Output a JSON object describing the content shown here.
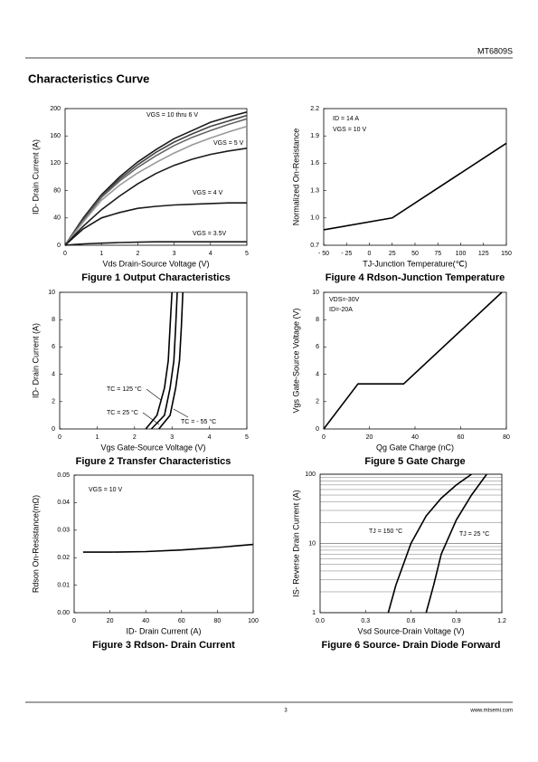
{
  "header": {
    "part": "MT6809S",
    "title": "Characteristics Curve"
  },
  "footer": {
    "page": "3",
    "site": "www.mtsemi.com"
  },
  "chart_data": [
    {
      "type": "line",
      "title": "Figure 1 Output Characteristics",
      "x_label": "Vds Drain-Source Voltage (V)",
      "y_label": "ID- Drain Current (A)",
      "xlim": [
        0,
        5
      ],
      "ylim": [
        0,
        200
      ],
      "xticks": [
        0,
        1,
        2,
        3,
        4,
        5
      ],
      "yticks": [
        0,
        40,
        80,
        120,
        160,
        200
      ],
      "grid": false,
      "x": [
        0,
        0.25,
        0.5,
        1,
        1.5,
        2,
        2.5,
        3,
        3.5,
        4,
        4.5,
        5
      ],
      "series": [
        {
          "color": "#1a1a1a",
          "values": [
            0,
            20,
            40,
            74,
            100,
            122,
            140,
            156,
            168,
            180,
            188,
            195
          ]
        },
        {
          "color": "#444444",
          "values": [
            0,
            19,
            38,
            72,
            97,
            118,
            136,
            151,
            163,
            174,
            182,
            190
          ]
        },
        {
          "color": "#666666",
          "values": [
            0,
            18,
            36,
            70,
            94,
            114,
            131,
            146,
            158,
            168,
            177,
            185
          ]
        },
        {
          "color": "#999999",
          "values": [
            0,
            17,
            34,
            66,
            88,
            106,
            121,
            135,
            147,
            157,
            166,
            174
          ]
        },
        {
          "color": "#1a1a1a",
          "values": [
            0,
            14,
            28,
            52,
            72,
            90,
            105,
            117,
            126,
            133,
            138,
            142
          ]
        },
        {
          "color": "#1a1a1a",
          "values": [
            0,
            12,
            24,
            40,
            48,
            54,
            57,
            59,
            60,
            61,
            62,
            62
          ]
        },
        {
          "color": "#1a1a1a",
          "values": [
            0,
            1,
            2,
            3,
            4,
            4.5,
            5,
            5,
            5,
            5,
            5,
            5
          ]
        }
      ],
      "annotations": [
        "VGS = 10 thru 6 V",
        "VGS = 5 V",
        "VGS = 4 V",
        "VGS = 3.5V"
      ]
    },
    {
      "type": "line",
      "title": "Figure 4 Rdson-Junction Temperature",
      "x_label": "TJ-Junction Temperature(℃)",
      "y_label": "Normalized On-Resistance",
      "xlim": [
        -50,
        150
      ],
      "ylim": [
        0.7,
        2.2
      ],
      "xticks": [
        {
          "value": -50,
          "label": "- 50"
        },
        {
          "value": -25,
          "label": "- 25"
        },
        0,
        25,
        50,
        75,
        100,
        125,
        150
      ],
      "yticks": [
        0.7,
        {
          "value": 1,
          "label": "1.0"
        },
        1.3,
        1.6,
        1.9,
        2.2
      ],
      "grid": false,
      "series": [
        {
          "color": "#000000",
          "x": [
            -50,
            25,
            150
          ],
          "values": [
            0.87,
            1.0,
            1.82
          ]
        }
      ],
      "annotations": [
        "ID = 14 A",
        "VGS = 10 V"
      ]
    },
    {
      "type": "line",
      "title": "Figure 2 Transfer Characteristics",
      "x_label": "Vgs Gate-Source Voltage (V)",
      "y_label": "ID- Drain Current (A)",
      "xlim": [
        0,
        5
      ],
      "ylim": [
        0,
        10
      ],
      "xticks": [
        0,
        1,
        2,
        3,
        4,
        5
      ],
      "yticks": [
        0,
        2,
        4,
        6,
        8,
        10
      ],
      "grid": false,
      "series": [
        {
          "color": "#000000",
          "x": [
            2.3,
            2.6,
            2.8,
            2.9,
            2.95,
            3.0
          ],
          "values": [
            0,
            1,
            3,
            5,
            7.5,
            10
          ]
        },
        {
          "color": "#000000",
          "x": [
            2.45,
            2.8,
            2.95,
            3.05,
            3.1,
            3.14
          ],
          "values": [
            0,
            1,
            3,
            5,
            7.5,
            10
          ]
        },
        {
          "color": "#000000",
          "x": [
            2.65,
            2.95,
            3.1,
            3.2,
            3.25,
            3.29
          ],
          "values": [
            0,
            1,
            3,
            5,
            7.5,
            10
          ]
        }
      ],
      "annotations": [
        "TC = 125 °C",
        "TC = 25 °C",
        "TC = - 55 °C"
      ]
    },
    {
      "type": "line",
      "title": "Figure 5 Gate Charge",
      "x_label": "Qg Gate Charge (nC)",
      "y_label": "Vgs Gate-Source Voltage (V)",
      "xlim": [
        0,
        80
      ],
      "ylim": [
        0,
        10
      ],
      "xticks": [
        0,
        20,
        40,
        60,
        80
      ],
      "yticks": [
        0,
        2,
        4,
        6,
        8,
        10
      ],
      "grid": false,
      "series": [
        {
          "color": "#000000",
          "x": [
            0,
            15,
            35,
            78
          ],
          "values": [
            0,
            3.3,
            3.3,
            10
          ]
        }
      ],
      "annotations": [
        "VDS=-30V",
        "ID=-20A"
      ]
    },
    {
      "type": "line",
      "title": "Figure 3 Rdson- Drain Current",
      "x_label": "ID- Drain Current (A)",
      "y_label": "Rdson On-Resistance(mΩ)",
      "xlim": [
        0,
        100
      ],
      "ylim": [
        0,
        0.05
      ],
      "xticks": [
        0,
        20,
        40,
        60,
        80,
        100
      ],
      "yticks": [
        {
          "value": 0,
          "label": "0.00"
        },
        0.01,
        0.02,
        0.03,
        0.04,
        0.05
      ],
      "grid": false,
      "series": [
        {
          "color": "#000000",
          "x": [
            5,
            20,
            40,
            60,
            80,
            100
          ],
          "values": [
            0.022,
            0.022,
            0.0222,
            0.0228,
            0.0237,
            0.0248
          ]
        }
      ],
      "annotations": [
        "VGS = 10 V"
      ]
    },
    {
      "type": "line",
      "title": "Figure 6 Source- Drain Diode Forward",
      "x_label": "Vsd Source-Drain Voltage (V)",
      "y_label": "IS- Reverse Drain Current (A)",
      "xlim": [
        0,
        1.2
      ],
      "ylim": [
        1,
        100
      ],
      "ylog": true,
      "xticks": [
        {
          "value": 0,
          "label": "0.0"
        },
        0.3,
        0.6,
        0.9,
        1.2
      ],
      "yticks": [
        1,
        10,
        100
      ],
      "minor_yticks": [
        2,
        3,
        4,
        5,
        6,
        7,
        8,
        9,
        20,
        30,
        40,
        50,
        60,
        70,
        80,
        90
      ],
      "grid": true,
      "series": [
        {
          "color": "#000000",
          "x": [
            0.45,
            0.5,
            0.6,
            0.7,
            0.8,
            0.9,
            1.0
          ],
          "values": [
            1,
            2.5,
            10,
            25,
            45,
            70,
            100
          ]
        },
        {
          "color": "#000000",
          "x": [
            0.7,
            0.75,
            0.8,
            0.9,
            1.0,
            1.1
          ],
          "values": [
            1,
            2.5,
            7,
            22,
            50,
            100
          ]
        }
      ],
      "annotations": [
        "TJ = 150 °C",
        "TJ = 25 °C"
      ]
    }
  ]
}
